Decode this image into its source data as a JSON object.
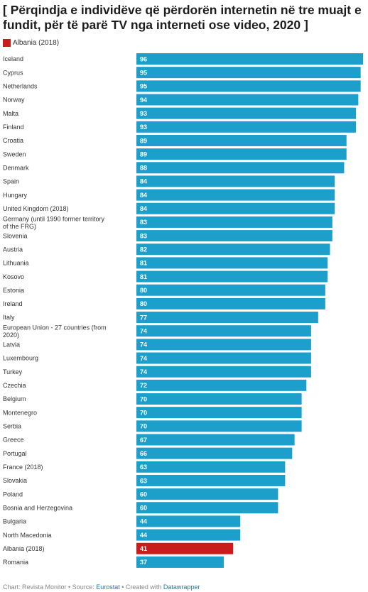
{
  "header": {
    "title": "[ Përqindja e individëve që përdorën internetin në tre muajt e fundit, për të parë TV nga interneti ose video, 2020 ]"
  },
  "legend": {
    "label": "Albania (2018)",
    "color": "#c71e1d"
  },
  "footer": {
    "chart_prefix": "Chart: Revista Monitor • Source: ",
    "source_link": "Eurostat",
    "created_text": " • Created with ",
    "tool_link": "Datawrapper"
  },
  "chart_data": {
    "type": "bar",
    "orientation": "horizontal",
    "title": "[ Përqindja e individëve që përdorën internetin në tre muajt e fundit, për të parë TV nga interneti ose video, 2020 ]",
    "xlim": [
      0,
      96
    ],
    "grid": false,
    "data_labels": true,
    "default_color": "#1d9fcc",
    "highlight_color": "#c71e1d",
    "highlight_category": "Albania (2018)",
    "categories": [
      "Iceland",
      "Cyprus",
      "Netherlands",
      "Norway",
      "Malta",
      "Finland",
      "Croatia",
      "Sweden",
      "Denmark",
      "Spain",
      "Hungary",
      "United Kingdom (2018)",
      "Germany (until 1990 former territory of the FRG)",
      "Slovenia",
      "Austria",
      "Lithuania",
      "Kosovo",
      "Estonia",
      "Ireland",
      "Italy",
      "European Union - 27 countries (from 2020)",
      "Latvia",
      "Luxembourg",
      "Turkey",
      "Czechia",
      "Belgium",
      "Montenegro",
      "Serbia",
      "Greece",
      "Portugal",
      "France (2018)",
      "Slovakia",
      "Poland",
      "Bosnia and Herzegovina",
      "Bulgaria",
      "North Macedonia",
      "Albania (2018)",
      "Romania"
    ],
    "values": [
      96,
      95,
      95,
      94,
      93,
      93,
      89,
      89,
      88,
      84,
      84,
      84,
      83,
      83,
      82,
      81,
      81,
      80,
      80,
      77,
      74,
      74,
      74,
      74,
      72,
      70,
      70,
      70,
      67,
      66,
      63,
      63,
      60,
      60,
      44,
      44,
      41,
      37
    ]
  }
}
